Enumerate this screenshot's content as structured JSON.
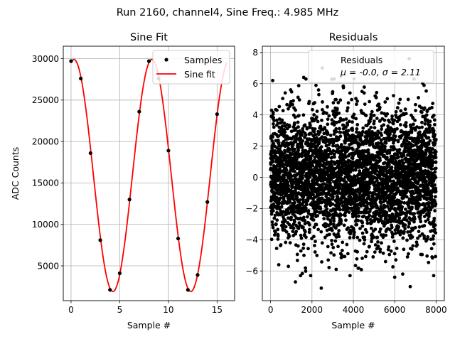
{
  "figure": {
    "suptitle": "Run 2160, channel4, Sine Freq.: 4.985 MHz"
  },
  "chart_data": [
    {
      "type": "line",
      "title": "Sine Fit",
      "xlabel": "Sample #",
      "ylabel": "ADC Counts",
      "xlim": [
        -0.8,
        16.8
      ],
      "ylim": [
        800,
        31500
      ],
      "xticks": [
        0,
        5,
        10,
        15
      ],
      "xtick_labels": [
        "0",
        "5",
        "10",
        "15"
      ],
      "yticks": [
        5000,
        10000,
        15000,
        20000,
        25000,
        30000
      ],
      "ytick_labels": [
        "5000",
        "10000",
        "15000",
        "20000",
        "25000",
        "30000"
      ],
      "grid": true,
      "legend_position": "top-right",
      "series": [
        {
          "name": "Samples",
          "kind": "scatter",
          "color": "#000000",
          "x": [
            0,
            1,
            2,
            3,
            4,
            5,
            6,
            7,
            8,
            9,
            10,
            11,
            12,
            13,
            14,
            15
          ],
          "y": [
            29700,
            27600,
            18600,
            8100,
            2100,
            4100,
            13000,
            23600,
            29700,
            27600,
            18900,
            8300,
            2100,
            3900,
            12700,
            23300
          ]
        },
        {
          "name": "Sine fit",
          "kind": "line",
          "color": "#ff0000",
          "x_range": [
            0,
            16
          ],
          "model": {
            "offset": 15900,
            "amplitude": 14000,
            "period": 8.0,
            "peak_x": 0.3
          }
        }
      ]
    },
    {
      "type": "scatter",
      "title": "Residuals",
      "xlabel": "Sample #",
      "ylabel": "",
      "xlim": [
        -400,
        8400
      ],
      "ylim": [
        -7.9,
        8.4
      ],
      "xticks": [
        0,
        2000,
        4000,
        6000,
        8000
      ],
      "xtick_labels": [
        "0",
        "2000",
        "4000",
        "6000",
        "8000"
      ],
      "yticks": [
        -6,
        -4,
        -2,
        0,
        2,
        4,
        6,
        8
      ],
      "ytick_labels": [
        "−6",
        "−4",
        "−2",
        "0",
        "2",
        "4",
        "6",
        "8"
      ],
      "grid": true,
      "legend_position": "top-right",
      "legend_lines": [
        "Residuals",
        "μ = -0.0, σ = 2.11"
      ],
      "series": [
        {
          "name": "Residuals",
          "color": "#000000",
          "n_points": 8000,
          "mean": 0.0,
          "std": 2.11,
          "outliers": [
            {
              "x": 2500,
              "y": 7.0
            },
            {
              "x": 6700,
              "y": 7.6
            },
            {
              "x": 2450,
              "y": -7.1
            },
            {
              "x": 6750,
              "y": -7.0
            },
            {
              "x": 6000,
              "y": -6.4
            },
            {
              "x": 100,
              "y": 6.2
            },
            {
              "x": 1600,
              "y": 6.4
            },
            {
              "x": 1200,
              "y": -6.7
            }
          ]
        }
      ]
    }
  ]
}
